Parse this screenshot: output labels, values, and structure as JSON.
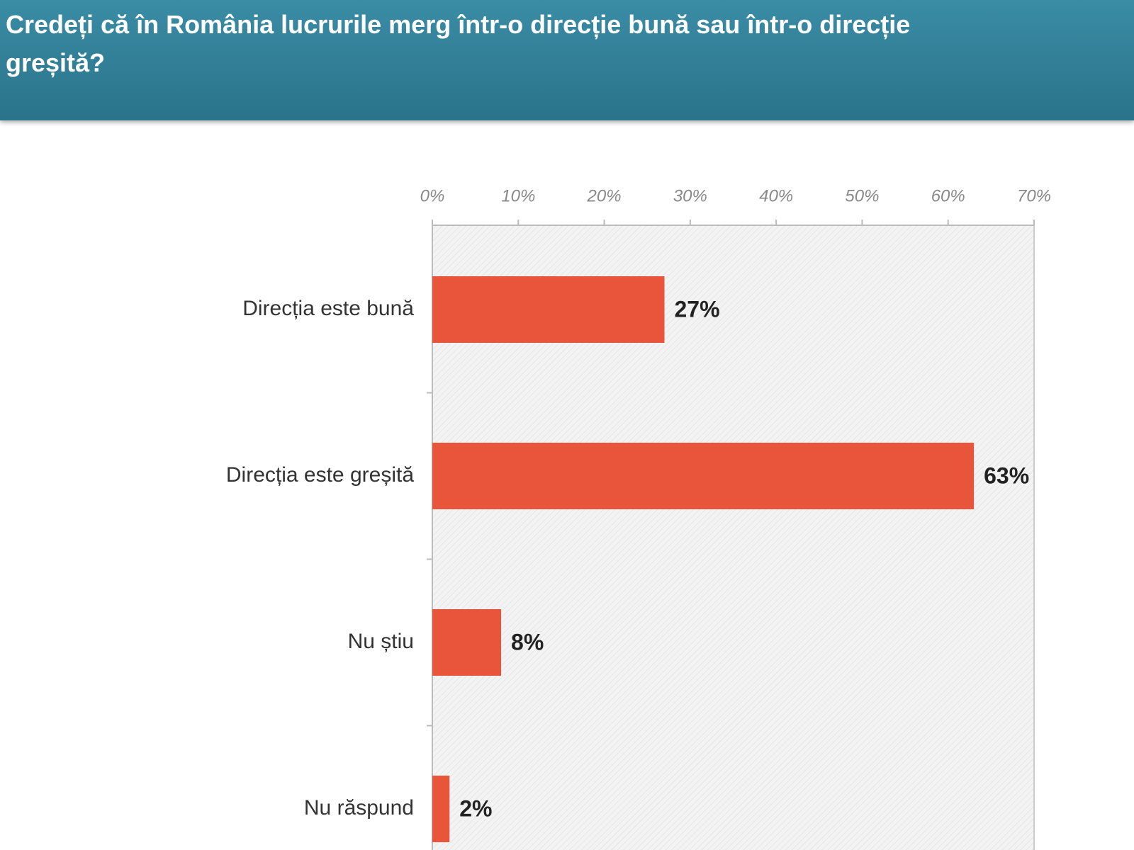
{
  "chart_data": {
    "type": "barh",
    "title": "Credeți că în România lucrurile merg într-o direcție bună sau într-o direcție greșită?",
    "categories": [
      "Direcția este bună",
      "Direcția este greșită",
      "Nu știu",
      "Nu răspund"
    ],
    "values": [
      27,
      63,
      8,
      2
    ],
    "value_labels": [
      "27%",
      "63%",
      "8%",
      "2%"
    ],
    "color": "#e8553a",
    "xlim": [
      0,
      70
    ],
    "xticks": [
      {
        "value": 0,
        "label": "0%"
      },
      {
        "value": 10,
        "label": "10%"
      },
      {
        "value": 20,
        "label": "20%"
      },
      {
        "value": 30,
        "label": "30%"
      },
      {
        "value": 40,
        "label": "40%"
      },
      {
        "value": 50,
        "label": "50%"
      },
      {
        "value": 60,
        "label": "60%"
      },
      {
        "value": 70,
        "label": "70%"
      }
    ],
    "grid": false
  }
}
